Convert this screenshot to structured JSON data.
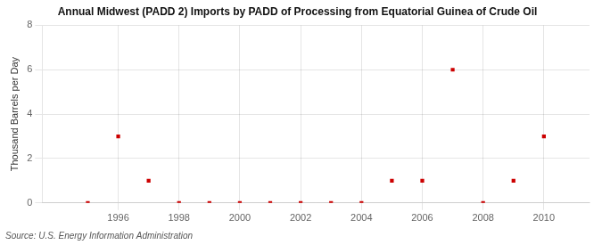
{
  "chart_data": {
    "type": "scatter",
    "title": "Annual Midwest (PADD 2) Imports by PADD of Processing from Equatorial Guinea of Crude Oil",
    "ylabel": "Thousand Barrels per Day",
    "source": "Source: U.S. Energy Information Administration",
    "x": [
      1995,
      1996,
      1997,
      1998,
      1999,
      2000,
      2001,
      2002,
      2003,
      2004,
      2005,
      2006,
      2007,
      2008,
      2009,
      2010
    ],
    "values": [
      0,
      3,
      1,
      0,
      0,
      0,
      0,
      0,
      0,
      0,
      1,
      1,
      6,
      0,
      1,
      3
    ],
    "color": "#cc0000",
    "marker": "square",
    "xlim": [
      1993.5,
      2011.5
    ],
    "xticks": [
      1996,
      1998,
      2000,
      2002,
      2004,
      2006,
      2008,
      2010
    ],
    "ylim": [
      0,
      8
    ],
    "yticks": [
      0,
      2,
      4,
      6,
      8
    ],
    "grid": true
  }
}
